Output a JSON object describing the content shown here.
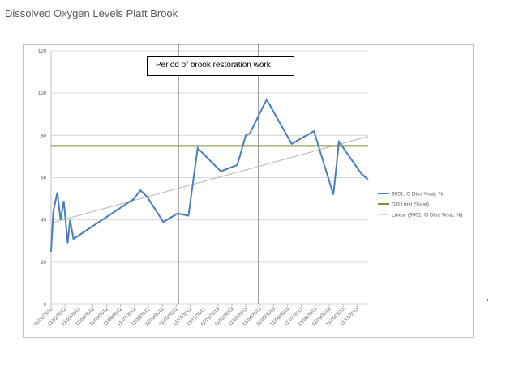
{
  "title": "Dissolved Oxygen Levels Platt Brook",
  "chart_data": {
    "type": "line",
    "title": "Dissolved Oxygen Levels Platt Brook",
    "xlabel": "",
    "ylabel": "",
    "ylim": [
      0,
      120
    ],
    "yticks": [
      0,
      20,
      40,
      60,
      80,
      100,
      120
    ],
    "xtick_labels": [
      "11/01/2012",
      "11/02/2012",
      "11/03/2012",
      "11/04/2012",
      "11/05/2012",
      "11/06/2012",
      "11/07/2012",
      "11/08/2012",
      "11/09/2012",
      "11/10/2012",
      "11/11/2012",
      "11/12/2012",
      "11/01/2013",
      "11/02/2013",
      "11/03/2013",
      "11/04/2013",
      "11/05/2013",
      "11/06/2013",
      "11/07/2013",
      "11/08/2013",
      "11/09/2013",
      "11/10/2013",
      "11/11/2013"
    ],
    "x_unit": "months since 11/01/2012",
    "xlim": [
      0,
      22.8
    ],
    "grid": true,
    "legend_position": "right",
    "series": [
      {
        "name": "9901: O Diss %sat, %",
        "color": "#4a7ebb",
        "x": [
          0,
          0.16,
          0.45,
          0.68,
          0.91,
          1.19,
          1.36,
          1.61,
          5.97,
          6.42,
          6.9,
          8.07,
          9.09,
          9.88,
          10.54,
          12.2,
          13.39,
          14.0,
          14.3,
          15.5,
          17.3,
          18.9,
          20.3,
          20.7,
          22.3,
          22.8
        ],
        "y": [
          25,
          44,
          53,
          40,
          49,
          29,
          40,
          31,
          50,
          54,
          51,
          39,
          43,
          42,
          74,
          63,
          66,
          80,
          81,
          97,
          76,
          82,
          52,
          77,
          62,
          59
        ]
      },
      {
        "name": "DO Limit (%sat)",
        "color": "#77933c",
        "x": [
          0,
          22.8
        ],
        "y": [
          75,
          75
        ]
      },
      {
        "name": "Linear (9901: O Diss %sat, %)",
        "color": "#bfbfbf",
        "x": [
          0,
          22.8
        ],
        "y": [
          38.5,
          79.5
        ]
      }
    ],
    "vertical_markers": [
      9.14,
      14.94
    ],
    "annotation": "Period of brook restoration work"
  }
}
